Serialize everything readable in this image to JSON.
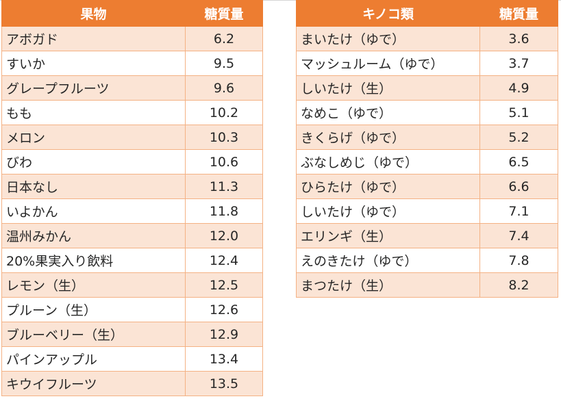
{
  "fruit_table": {
    "header": {
      "name": "果物",
      "value": "糖質量"
    },
    "rows": [
      {
        "name": "アボガド",
        "value": "6.2"
      },
      {
        "name": "すいか",
        "value": "9.5"
      },
      {
        "name": "グレープフルーツ",
        "value": "9.6"
      },
      {
        "name": "もも",
        "value": "10.2"
      },
      {
        "name": "メロン",
        "value": "10.3"
      },
      {
        "name": "びわ",
        "value": "10.6"
      },
      {
        "name": "日本なし",
        "value": "11.3"
      },
      {
        "name": "いよかん",
        "value": "11.8"
      },
      {
        "name": "温州みかん",
        "value": "12.0"
      },
      {
        "name": "20%果実入り飲料",
        "value": "12.4"
      },
      {
        "name": "レモン（生）",
        "value": "12.5"
      },
      {
        "name": "プルーン（生）",
        "value": "12.6"
      },
      {
        "name": "ブルーベリー（生）",
        "value": "12.9"
      },
      {
        "name": "パインアップル",
        "value": "13.4"
      },
      {
        "name": "キウイフルーツ",
        "value": "13.5"
      }
    ]
  },
  "mushroom_table": {
    "header": {
      "name": "キノコ類",
      "value": "糖質量"
    },
    "rows": [
      {
        "name": "まいたけ（ゆで）",
        "value": "3.6"
      },
      {
        "name": "マッシュルーム（ゆで）",
        "value": "3.7"
      },
      {
        "name": "しいたけ（生）",
        "value": "4.9"
      },
      {
        "name": "なめこ（ゆで）",
        "value": "5.1"
      },
      {
        "name": "きくらげ（ゆで）",
        "value": "5.2"
      },
      {
        "name": "ぶなしめじ（ゆで）",
        "value": "6.5"
      },
      {
        "name": "ひらたけ（ゆで）",
        "value": "6.6"
      },
      {
        "name": "しいたけ（ゆで）",
        "value": "7.1"
      },
      {
        "name": "エリンギ（生）",
        "value": "7.4"
      },
      {
        "name": "えのきたけ（ゆで）",
        "value": "7.8"
      },
      {
        "name": "まつたけ（生）",
        "value": "8.2"
      }
    ]
  },
  "colors": {
    "header_bg": "#ed7d31",
    "band_bg": "#fbe4d5",
    "border": "#f4b183",
    "text": "#262626"
  }
}
